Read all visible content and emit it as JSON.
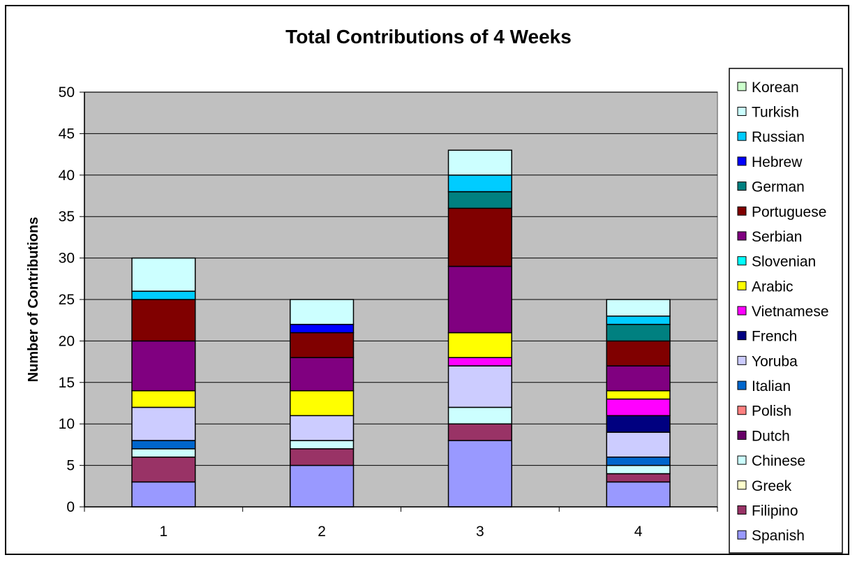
{
  "chart_data": {
    "type": "bar",
    "stacked": true,
    "title": "Total Contributions of 4 Weeks",
    "xlabel": "",
    "ylabel": "Number of Contributions",
    "ylim": [
      0,
      50
    ],
    "yticks": [
      "0",
      "5",
      "10",
      "15",
      "20",
      "25",
      "30",
      "35",
      "40",
      "45",
      "50"
    ],
    "categories": [
      "1",
      "2",
      "3",
      "4"
    ],
    "grid": true,
    "legend_position": "right",
    "series": [
      {
        "name": "Spanish",
        "color": "#9999FF",
        "values": [
          3,
          5,
          8,
          3
        ]
      },
      {
        "name": "Filipino",
        "color": "#993366",
        "values": [
          3,
          2,
          2,
          1
        ]
      },
      {
        "name": "Greek",
        "color": "#FFFFCC",
        "values": [
          0,
          0,
          0,
          0
        ]
      },
      {
        "name": "Chinese",
        "color": "#CCFFFF",
        "values": [
          1,
          1,
          2,
          1
        ]
      },
      {
        "name": "Dutch",
        "color": "#660066",
        "values": [
          0,
          0,
          0,
          0
        ]
      },
      {
        "name": "Polish",
        "color": "#FF8080",
        "values": [
          0,
          0,
          0,
          0
        ]
      },
      {
        "name": "Italian",
        "color": "#0066CC",
        "values": [
          1,
          0,
          0,
          1
        ]
      },
      {
        "name": "Yoruba",
        "color": "#CCCCFF",
        "values": [
          4,
          3,
          5,
          3
        ]
      },
      {
        "name": "French",
        "color": "#000080",
        "values": [
          0,
          0,
          0,
          2
        ]
      },
      {
        "name": "Vietnamese",
        "color": "#FF00FF",
        "values": [
          0,
          0,
          1,
          2
        ]
      },
      {
        "name": "Arabic",
        "color": "#FFFF00",
        "values": [
          2,
          3,
          3,
          1
        ]
      },
      {
        "name": "Slovenian",
        "color": "#00FFFF",
        "values": [
          0,
          0,
          0,
          0
        ]
      },
      {
        "name": "Serbian",
        "color": "#800080",
        "values": [
          6,
          4,
          8,
          3
        ]
      },
      {
        "name": "Portuguese",
        "color": "#800000",
        "values": [
          5,
          3,
          7,
          3
        ]
      },
      {
        "name": "German",
        "color": "#008080",
        "values": [
          0,
          0,
          2,
          2
        ]
      },
      {
        "name": "Hebrew",
        "color": "#0000FF",
        "values": [
          0,
          1,
          0,
          0
        ]
      },
      {
        "name": "Russian",
        "color": "#00CCFF",
        "values": [
          1,
          0,
          2,
          1
        ]
      },
      {
        "name": "Turkish",
        "color": "#CCFFFF",
        "values": [
          4,
          3,
          3,
          2
        ]
      },
      {
        "name": "Korean",
        "color": "#CCFFCC",
        "values": [
          0,
          0,
          0,
          0
        ]
      }
    ],
    "plot_background": "#C0C0C0",
    "bar_outline_color": "#000000"
  }
}
